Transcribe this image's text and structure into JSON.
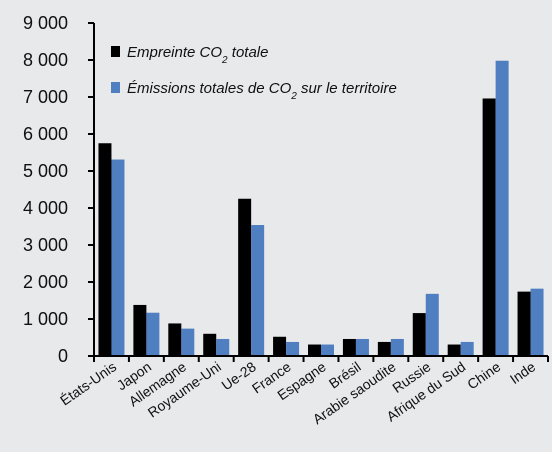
{
  "chart_data": {
    "type": "bar",
    "title": "",
    "xlabel": "",
    "ylabel": "",
    "ylim": [
      0,
      9000
    ],
    "yticks": [
      0,
      1000,
      2000,
      3000,
      4000,
      5000,
      6000,
      7000,
      8000,
      9000
    ],
    "ytick_labels": [
      "0",
      "1 000",
      "2 000",
      "3 000",
      "4 000",
      "5 000",
      "6 000",
      "7 000",
      "8 000",
      "9 000"
    ],
    "grid": false,
    "legend_position": "top-left",
    "categories": [
      "États-Unis",
      "Japon",
      "Allemagne",
      "Royaume-Uni",
      "Ue-28",
      "France",
      "Espagne",
      "Brésil",
      "Arabie saoudite",
      "Russie",
      "Afrique du Sud",
      "Chine",
      "Inde"
    ],
    "series": [
      {
        "name": "Empreinte CO₂ totale",
        "legend_main": "Empreinte CO",
        "legend_sub": "2",
        "legend_tail": " totale",
        "color": "#000000",
        "values": [
          5750,
          1380,
          880,
          600,
          4250,
          520,
          310,
          460,
          380,
          1160,
          310,
          6960,
          1740
        ]
      },
      {
        "name": "Émissions totales de CO₂ sur le territoire",
        "legend_main": "Émissions totales de CO",
        "legend_sub": "2",
        "legend_tail": " sur le territoire",
        "color": "#4f7fc1",
        "values": [
          5310,
          1170,
          740,
          460,
          3540,
          380,
          310,
          460,
          460,
          1680,
          380,
          7980,
          1820
        ]
      }
    ]
  }
}
